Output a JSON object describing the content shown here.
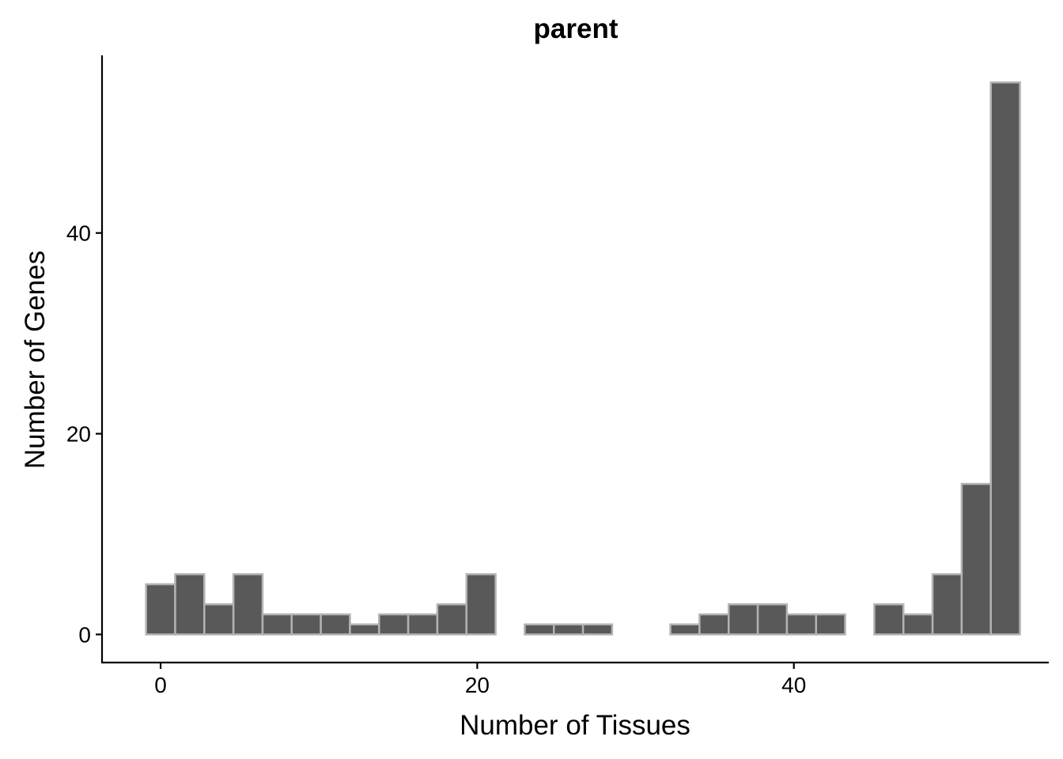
{
  "chart_data": {
    "type": "bar",
    "title": "parent",
    "xlabel": "Number of Tissues",
    "ylabel": "Number of Genes",
    "x_ticks": [
      0,
      20,
      40
    ],
    "y_ticks": [
      0,
      20,
      40
    ],
    "xlim": [
      -3.7,
      56.1
    ],
    "ylim": [
      -2.8,
      57.7
    ],
    "bin_width": 1.84,
    "x": [
      0,
      1.84,
      3.68,
      5.52,
      7.36,
      9.2,
      11.04,
      12.88,
      14.72,
      16.56,
      18.4,
      20.24,
      22.08,
      23.92,
      25.76,
      27.6,
      29.44,
      31.28,
      33.12,
      34.96,
      36.8,
      38.64,
      40.48,
      42.32,
      44.16,
      46,
      47.84,
      49.68,
      51.52,
      53.36
    ],
    "values": [
      5,
      6,
      3,
      6,
      2,
      2,
      2,
      1,
      2,
      2,
      3,
      6,
      0,
      1,
      1,
      1,
      0,
      0,
      1,
      2,
      3,
      3,
      2,
      2,
      0,
      3,
      2,
      6,
      15,
      55
    ],
    "fill_color": "#595959",
    "edge_color": "#b3b3b3",
    "grid": false
  }
}
